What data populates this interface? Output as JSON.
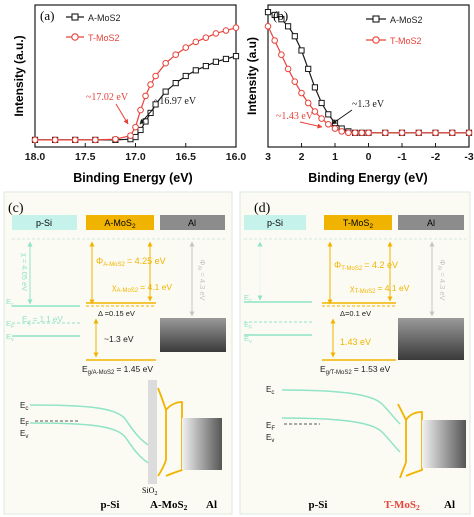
{
  "colors": {
    "black_series": "#1a1a1a",
    "red_series": "#e8423a",
    "mos2_gold": "#f0b400",
    "psi_cyan": "#c6f2ec",
    "psi_line": "#8fe3c6",
    "al_gray": "#8c8c8c",
    "gray_text": "#c4c4c4",
    "panel_bg": "#fcfbf3",
    "sio2_gray": "#dcdcdc"
  },
  "chart_data": [
    {
      "type": "line",
      "panel": "(a)",
      "xlabel": "Binding Energy (eV)",
      "ylabel": "Intensity (a.u.)",
      "xlim": [
        18.0,
        16.0
      ],
      "x_reversed": true,
      "xticks": [
        "18.0",
        "17.5",
        "17.0",
        "16.5",
        "16.0"
      ],
      "legend_position": "top-left",
      "series": [
        {
          "name": "A-MoS2",
          "color": "#1a1a1a",
          "marker": "square",
          "x": [
            18.0,
            17.8,
            17.6,
            17.4,
            17.2,
            17.05,
            17.0,
            16.95,
            16.9,
            16.85,
            16.8,
            16.7,
            16.6,
            16.5,
            16.4,
            16.3,
            16.2,
            16.1,
            16.0
          ],
          "y": [
            0.05,
            0.05,
            0.05,
            0.05,
            0.05,
            0.055,
            0.07,
            0.12,
            0.18,
            0.24,
            0.3,
            0.39,
            0.45,
            0.5,
            0.54,
            0.57,
            0.6,
            0.62,
            0.64
          ]
        },
        {
          "name": "T-MoS2",
          "color": "#e8423a",
          "marker": "circle",
          "x": [
            18.0,
            17.8,
            17.6,
            17.4,
            17.2,
            17.05,
            17.0,
            16.95,
            16.9,
            16.85,
            16.8,
            16.7,
            16.6,
            16.5,
            16.4,
            16.3,
            16.2,
            16.1,
            16.0
          ],
          "y": [
            0.05,
            0.05,
            0.05,
            0.05,
            0.055,
            0.08,
            0.14,
            0.26,
            0.36,
            0.44,
            0.5,
            0.59,
            0.65,
            0.7,
            0.74,
            0.77,
            0.8,
            0.82,
            0.84
          ]
        }
      ],
      "annotations": [
        {
          "text": "~17.02 eV",
          "color": "#e8423a",
          "x": 17.02
        },
        {
          "text": "~16.97 eV",
          "color": "#1a1a1a",
          "x": 16.97
        }
      ]
    },
    {
      "type": "line",
      "panel": "(b)",
      "xlabel": "Binding Energy (eV)",
      "ylabel": "Intensity (a.u)",
      "xlim": [
        3,
        -3
      ],
      "x_reversed": true,
      "xticks": [
        "3",
        "2",
        "1",
        "0",
        "-1",
        "-2",
        "-3"
      ],
      "legend_position": "top-right",
      "series": [
        {
          "name": "A-MoS2",
          "color": "#1a1a1a",
          "marker": "square",
          "x": [
            3.0,
            2.8,
            2.6,
            2.4,
            2.2,
            2.0,
            1.8,
            1.6,
            1.4,
            1.2,
            1.0,
            0.8,
            0.6,
            0.4,
            0.2,
            0.0,
            -0.5,
            -1.0,
            -1.5,
            -2.0,
            -2.5,
            -3.0
          ],
          "y": [
            0.95,
            0.93,
            0.9,
            0.85,
            0.78,
            0.68,
            0.55,
            0.42,
            0.31,
            0.23,
            0.17,
            0.13,
            0.11,
            0.1,
            0.1,
            0.1,
            0.1,
            0.1,
            0.1,
            0.1,
            0.1,
            0.1
          ]
        },
        {
          "name": "T-MoS2",
          "color": "#e8423a",
          "marker": "circle",
          "x": [
            3.0,
            2.8,
            2.6,
            2.4,
            2.2,
            2.0,
            1.8,
            1.6,
            1.4,
            1.2,
            1.0,
            0.8,
            0.6,
            0.4,
            0.2,
            0.0,
            -0.5,
            -1.0,
            -1.5,
            -2.0,
            -2.5,
            -3.0
          ],
          "y": [
            0.85,
            0.75,
            0.65,
            0.55,
            0.46,
            0.38,
            0.31,
            0.25,
            0.2,
            0.16,
            0.13,
            0.11,
            0.1,
            0.1,
            0.1,
            0.1,
            0.1,
            0.1,
            0.1,
            0.1,
            0.1,
            0.1
          ]
        }
      ],
      "annotations": [
        {
          "text": "~1.3 eV",
          "color": "#1a1a1a",
          "x": 1.3
        },
        {
          "text": "~1.43 eV",
          "color": "#e8423a",
          "x": 1.43
        }
      ]
    }
  ],
  "panel_c": {
    "label": "(c)",
    "header_psi": "p-Si",
    "header_mos2": "A-MoS",
    "header_mos2_sub": "2",
    "header_al": "Al",
    "chi_psi": "χ = 4.05 eV",
    "ec_left": "E",
    "ec_left_sub": "c",
    "ef_left": "E",
    "ef_left_sub": "F",
    "ev_left": "E",
    "ev_left_sub": "v",
    "eg_psi": "E",
    "eg_psi_sub": "g",
    "eg_psi_val": "= 1.1 eV",
    "phi_mos2": "Φ",
    "phi_mos2_sub": "A-MoS2",
    "phi_mos2_val": "= 4.25 eV",
    "chi_mos2": "χ",
    "chi_mos2_sub": "A-MoS2",
    "chi_mos2_val": "= 4.1 eV",
    "delta": "Δ =0.15 eV",
    "vb_offset": "~1.3 eV",
    "eg_mos2": "E",
    "eg_mos2_sub": "g/A-MoS2",
    "eg_mos2_val": "= 1.45 eV",
    "phi_al": "Φ",
    "phi_al_sub": "Al",
    "phi_al_val": "= 4.3 eV",
    "band_ec": "E",
    "band_ec_sub": "c",
    "band_ef": "E",
    "band_ef_sub": "F",
    "band_ev": "E",
    "band_ev_sub": "v",
    "bottom_psi": "p-Si",
    "bottom_sio2": "SiO",
    "bottom_sio2_sub": "2",
    "bottom_mos2": "A-MoS",
    "bottom_mos2_sub": "2",
    "bottom_al": "Al"
  },
  "panel_d": {
    "label": "(d)",
    "header_psi": "p-Si",
    "header_mos2": "T-MoS",
    "header_mos2_sub": "2",
    "header_al": "Al",
    "ec_left": "E",
    "ec_left_sub": "c",
    "ef_left": "E",
    "ef_left_sub": "F",
    "ev_left": "E",
    "ev_left_sub": "v",
    "phi_mos2": "Φ",
    "phi_mos2_sub": "T-MoS2",
    "phi_mos2_val": "= 4.2 eV",
    "chi_mos2": "χ",
    "chi_mos2_sub": "T-MoS2",
    "chi_mos2_val": "= 4.1 eV",
    "delta": "Δ=0.1 eV",
    "vb_offset": "1.43 eV",
    "eg_mos2": "E",
    "eg_mos2_sub": "g/T-MoS2",
    "eg_mos2_val": "= 1.53 eV",
    "phi_al": "Φ",
    "phi_al_sub": "Al",
    "phi_al_val": "= 4.3 eV",
    "band_ec": "E",
    "band_ec_sub": "c",
    "band_ef": "E",
    "band_ef_sub": "F",
    "band_ev": "E",
    "band_ev_sub": "v",
    "bottom_psi": "p-Si",
    "bottom_mos2": "T-MoS",
    "bottom_mos2_sub": "2",
    "bottom_al": "Al"
  }
}
